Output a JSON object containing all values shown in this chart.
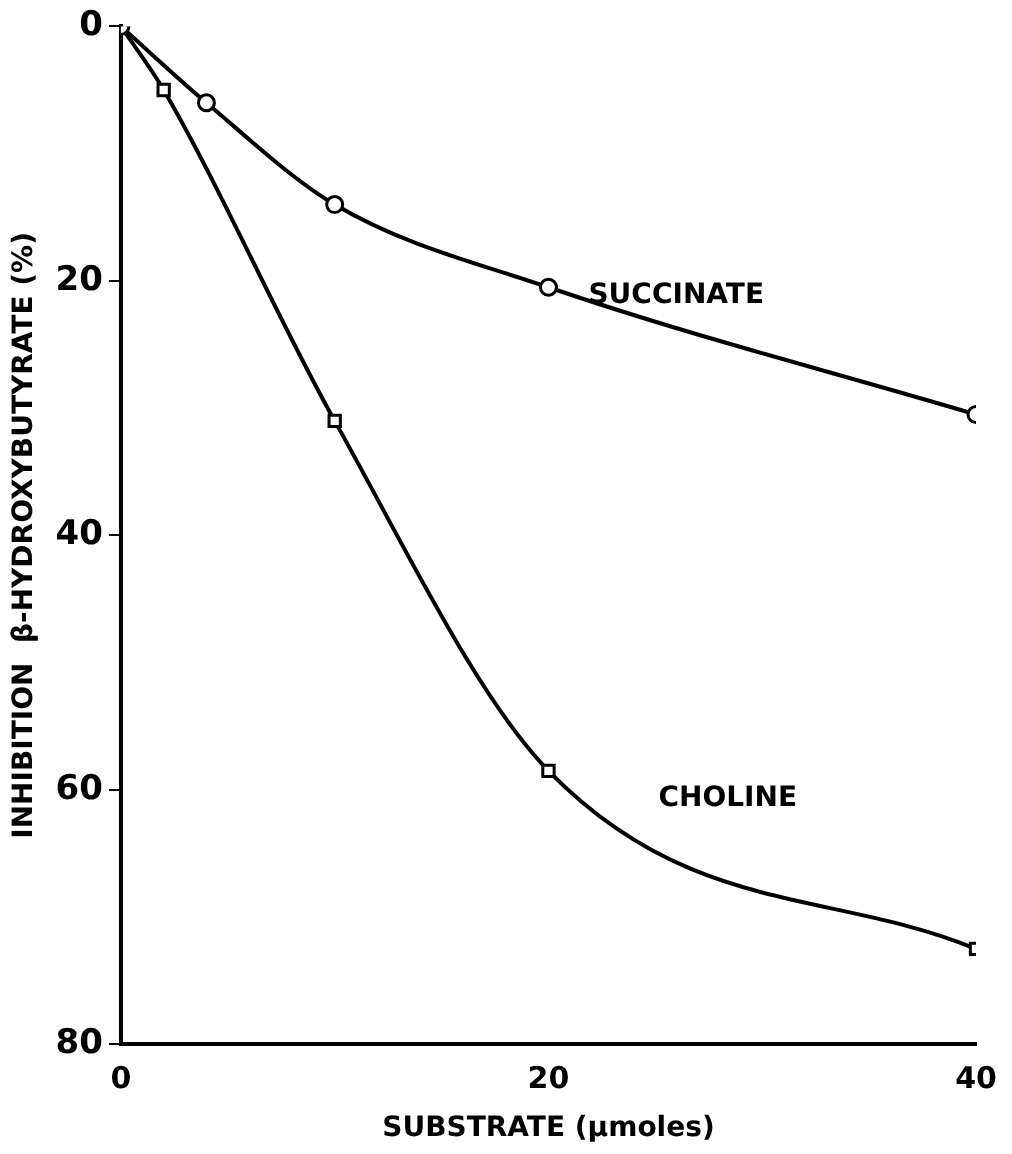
{
  "chart_data": {
    "type": "line",
    "xlabel": "SUBSTRATE (μmoles)",
    "ylabel": "INHIBITION  β-HYDROXYBUTYRATE (%)",
    "xlim": [
      0,
      40
    ],
    "xticks": [
      0,
      20,
      40
    ],
    "ylim": [
      80,
      0
    ],
    "yticks": [
      0,
      20,
      40,
      60,
      80
    ],
    "grid": false,
    "legend": false,
    "series": [
      {
        "name": "SUCCINATE",
        "color": "#000000",
        "marker": "circle",
        "x": [
          0,
          4,
          10,
          20,
          40
        ],
        "values": [
          0,
          6,
          14,
          20.5,
          30.5
        ]
      },
      {
        "name": "CHOLINE",
        "color": "#000000",
        "marker": "square",
        "x": [
          0,
          2,
          10,
          20,
          40
        ],
        "values": [
          0,
          5,
          31,
          58.5,
          72.5
        ]
      }
    ]
  }
}
